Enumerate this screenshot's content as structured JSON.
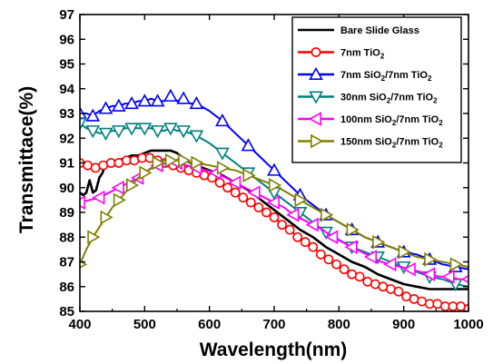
{
  "chart_data": {
    "type": "line",
    "xlabel": "Wavelength(nm)",
    "ylabel": "Transmittace(%)",
    "xlim": [
      400,
      1000
    ],
    "ylim": [
      85,
      97
    ],
    "xticks": [
      400,
      500,
      600,
      700,
      800,
      900,
      1000
    ],
    "yticks": [
      85,
      86,
      87,
      88,
      89,
      90,
      91,
      92,
      93,
      94,
      95,
      96,
      97
    ],
    "grid": false,
    "legend_position": "top-right",
    "series": [
      {
        "name": "Bare Slide Glass",
        "color": "#000000",
        "marker": "none",
        "x": [
          400,
          405,
          410,
          415,
          420,
          425,
          430,
          435,
          440,
          450,
          460,
          470,
          480,
          490,
          500,
          510,
          520,
          530,
          540,
          550,
          560,
          570,
          580,
          600,
          620,
          640,
          660,
          680,
          700,
          720,
          740,
          760,
          780,
          800,
          820,
          840,
          860,
          880,
          900,
          920,
          940,
          960,
          980,
          1000
        ],
        "y": [
          89.8,
          89.7,
          89.8,
          90.3,
          89.8,
          89.9,
          90.4,
          90.6,
          91.0,
          91.0,
          91.1,
          91.2,
          91.3,
          91.3,
          91.4,
          91.5,
          91.5,
          91.5,
          91.5,
          91.4,
          91.2,
          91.0,
          90.9,
          90.7,
          90.5,
          90.2,
          89.9,
          89.5,
          89.1,
          88.7,
          88.3,
          88.0,
          87.6,
          87.3,
          87.0,
          86.8,
          86.5,
          86.3,
          86.1,
          86.0,
          85.9,
          85.9,
          85.9,
          85.9
        ]
      },
      {
        "name": "7nm TiO2",
        "color": "#ff0000",
        "marker": "circle",
        "x": [
          400,
          412,
          424,
          436,
          448,
          460,
          472,
          484,
          496,
          508,
          520,
          532,
          544,
          556,
          568,
          580,
          592,
          604,
          616,
          628,
          640,
          652,
          664,
          676,
          688,
          700,
          712,
          724,
          736,
          748,
          760,
          772,
          784,
          796,
          808,
          820,
          832,
          844,
          856,
          868,
          880,
          892,
          904,
          916,
          928,
          940,
          952,
          964,
          976,
          988,
          1000
        ],
        "y": [
          91.0,
          90.9,
          90.8,
          90.9,
          91.0,
          91.0,
          91.1,
          91.1,
          91.2,
          91.2,
          91.1,
          91.0,
          90.9,
          90.8,
          90.7,
          90.6,
          90.5,
          90.4,
          90.2,
          90.0,
          89.8,
          89.6,
          89.4,
          89.2,
          89.0,
          88.8,
          88.5,
          88.3,
          88.0,
          87.8,
          87.6,
          87.3,
          87.1,
          86.9,
          86.7,
          86.5,
          86.4,
          86.2,
          86.1,
          86.0,
          85.9,
          85.8,
          85.6,
          85.5,
          85.4,
          85.3,
          85.3,
          85.2,
          85.2,
          85.2,
          85.1
        ]
      },
      {
        "name": "7nm SiO2/7nm TiO2",
        "color": "#0000ff",
        "marker": "triangle-up",
        "x": [
          400,
          410,
          420,
          430,
          440,
          450,
          460,
          470,
          480,
          490,
          500,
          510,
          520,
          530,
          540,
          550,
          560,
          570,
          580,
          600,
          620,
          640,
          660,
          680,
          700,
          720,
          740,
          760,
          780,
          800,
          820,
          840,
          860,
          880,
          900,
          920,
          940,
          960,
          980,
          1000
        ],
        "y": [
          93.0,
          93.0,
          92.9,
          93.1,
          93.2,
          93.3,
          93.3,
          93.4,
          93.4,
          93.5,
          93.5,
          93.6,
          93.5,
          93.5,
          93.7,
          93.5,
          93.6,
          93.4,
          93.4,
          93.1,
          92.7,
          92.2,
          91.7,
          91.2,
          90.7,
          90.2,
          89.7,
          89.3,
          88.9,
          88.6,
          88.3,
          88.0,
          87.8,
          87.6,
          87.4,
          87.3,
          87.1,
          86.9,
          86.8,
          86.7
        ]
      },
      {
        "name": "30nm SiO2/7nm TiO2",
        "color": "#008080",
        "marker": "triangle-down",
        "x": [
          400,
          410,
          420,
          430,
          440,
          450,
          460,
          470,
          480,
          490,
          500,
          510,
          520,
          530,
          540,
          550,
          560,
          570,
          580,
          600,
          620,
          640,
          660,
          680,
          700,
          720,
          740,
          760,
          780,
          800,
          820,
          840,
          860,
          880,
          900,
          920,
          940,
          960,
          980,
          1000
        ],
        "y": [
          92.6,
          92.4,
          92.3,
          92.2,
          92.2,
          92.3,
          92.3,
          92.4,
          92.4,
          92.4,
          92.4,
          92.4,
          92.3,
          92.3,
          92.4,
          92.3,
          92.3,
          92.2,
          92.1,
          91.8,
          91.4,
          91.0,
          90.6,
          90.2,
          89.8,
          89.4,
          89.0,
          88.6,
          88.2,
          87.9,
          87.6,
          87.4,
          87.2,
          87.0,
          86.8,
          86.6,
          86.4,
          86.3,
          86.1,
          86.0
        ]
      },
      {
        "name": "100nm SiO2/7nm TiO2",
        "color": "#ff00ff",
        "marker": "triangle-left",
        "x": [
          400,
          415,
          430,
          445,
          460,
          475,
          490,
          505,
          520,
          535,
          550,
          565,
          580,
          595,
          610,
          625,
          640,
          655,
          670,
          685,
          700,
          715,
          730,
          745,
          760,
          775,
          790,
          805,
          820,
          835,
          850,
          865,
          880,
          895,
          910,
          925,
          940,
          955,
          970,
          985,
          1000
        ],
        "y": [
          89.4,
          89.5,
          89.6,
          89.8,
          90.0,
          90.2,
          90.4,
          90.7,
          90.9,
          91.0,
          91.0,
          90.9,
          90.8,
          90.7,
          90.6,
          90.4,
          90.2,
          90.0,
          89.8,
          89.6,
          89.4,
          89.2,
          88.9,
          88.7,
          88.5,
          88.3,
          88.0,
          87.8,
          87.6,
          87.4,
          87.2,
          87.0,
          86.9,
          86.8,
          86.7,
          86.6,
          86.5,
          86.4,
          86.4,
          86.3,
          86.3
        ]
      },
      {
        "name": "150nm SiO2/7nm TiO2",
        "color": "#808000",
        "marker": "triangle-right",
        "x": [
          400,
          410,
          420,
          430,
          440,
          450,
          460,
          470,
          480,
          490,
          500,
          510,
          520,
          530,
          540,
          550,
          560,
          570,
          580,
          600,
          620,
          640,
          660,
          680,
          700,
          720,
          740,
          760,
          780,
          800,
          820,
          840,
          860,
          880,
          900,
          920,
          940,
          960,
          980,
          1000
        ],
        "y": [
          86.9,
          87.5,
          88.0,
          88.4,
          88.8,
          89.2,
          89.5,
          89.8,
          90.1,
          90.4,
          90.6,
          90.8,
          91.0,
          91.1,
          91.1,
          91.1,
          91.1,
          91.0,
          91.0,
          90.9,
          90.8,
          90.7,
          90.5,
          90.3,
          90.1,
          89.8,
          89.5,
          89.2,
          88.9,
          88.6,
          88.3,
          88.0,
          87.8,
          87.6,
          87.4,
          87.2,
          87.1,
          87.0,
          86.9,
          86.8
        ]
      }
    ],
    "legend_entries": [
      {
        "main": "Bare Slide Glass",
        "subscripts": []
      },
      {
        "main": "7nm TiO",
        "subscripts": [
          "2"
        ],
        "parts": [
          "7nm TiO",
          "2"
        ]
      },
      {
        "parts": [
          "7nm SiO",
          "2",
          "/7nm TiO",
          "2"
        ]
      },
      {
        "parts": [
          "30nm SiO",
          "2",
          "/7nm TiO",
          "2"
        ]
      },
      {
        "parts": [
          "100nm SiO",
          "2",
          "/7nm TiO",
          "2"
        ]
      },
      {
        "parts": [
          "150nm SiO",
          "2",
          "/7nm TiO",
          "2"
        ]
      }
    ]
  }
}
